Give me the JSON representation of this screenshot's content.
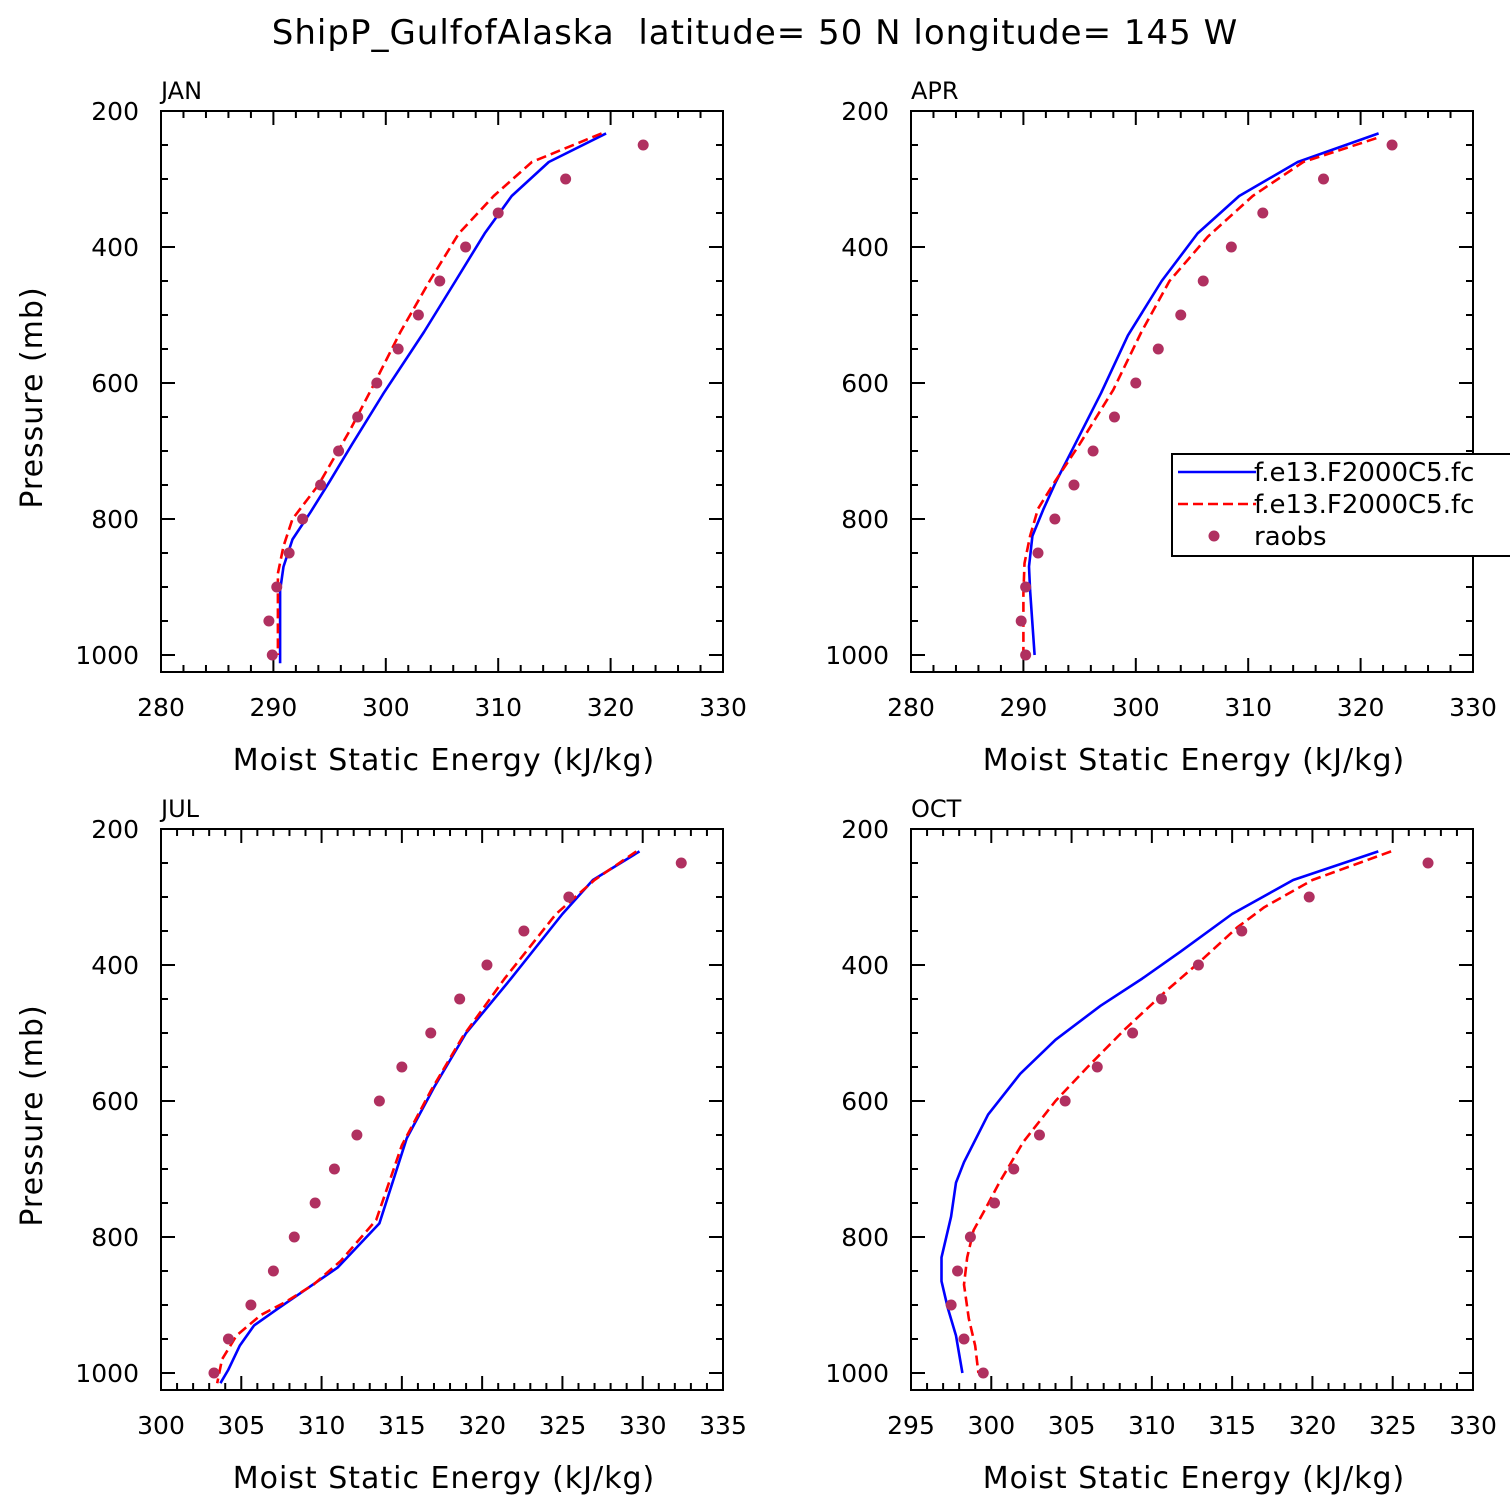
{
  "figure": {
    "title": "ShipP_GulfofAlaska  latitude= 50 N longitude= 145 W",
    "colors": {
      "model_a": "#0000ff",
      "model_b": "#ff0000",
      "raobs": "#b03060"
    }
  },
  "legend": {
    "placement": "right-middle of APR panel",
    "entries": [
      {
        "label": "f.e13.F2000C5.fc",
        "style": "solid",
        "color": "#0000ff"
      },
      {
        "label": "f.e13.F2000C5.fc",
        "style": "dashed",
        "color": "#ff0000"
      },
      {
        "label": "raobs",
        "style": "marker",
        "color": "#b03060"
      }
    ]
  },
  "chart_data": [
    {
      "type": "line",
      "panel": "JAN",
      "title": "JAN",
      "xlabel": "Moist Static Energy (kJ/kg)",
      "ylabel": "Pressure (mb)",
      "xlim": [
        280,
        330
      ],
      "ylim": [
        200,
        1025
      ],
      "y_inverted": true,
      "xticks": [
        280,
        290,
        300,
        310,
        320,
        330
      ],
      "yticks": [
        200,
        400,
        600,
        800,
        1000
      ],
      "series": [
        {
          "key": "model_a",
          "style": "solid",
          "color": "#0000ff",
          "points": [
            [
              319.6,
              233
            ],
            [
              314.5,
              275
            ],
            [
              311.2,
              325
            ],
            [
              308.8,
              380
            ],
            [
              306.2,
              450
            ],
            [
              303.4,
              525
            ],
            [
              299.8,
              615
            ],
            [
              297.0,
              690
            ],
            [
              295.0,
              745
            ],
            [
              293.3,
              790
            ],
            [
              291.7,
              830
            ],
            [
              290.9,
              870
            ],
            [
              290.6,
              905
            ],
            [
              290.6,
              1012
            ]
          ]
        },
        {
          "key": "model_b",
          "style": "dashed",
          "color": "#ff0000",
          "points": [
            [
              319.2,
              233
            ],
            [
              313.0,
              275
            ],
            [
              309.6,
              325
            ],
            [
              306.5,
              380
            ],
            [
              303.9,
              450
            ],
            [
              301.3,
              525
            ],
            [
              299.0,
              600
            ],
            [
              296.8,
              670
            ],
            [
              294.0,
              750
            ],
            [
              291.7,
              800
            ],
            [
              290.9,
              840
            ],
            [
              290.4,
              880
            ],
            [
              290.4,
              1000
            ]
          ]
        },
        {
          "key": "raobs",
          "style": "marker",
          "color": "#b03060",
          "points": [
            [
              322.9,
              250
            ],
            [
              316.0,
              300
            ],
            [
              310.0,
              350
            ],
            [
              307.1,
              400
            ],
            [
              304.8,
              450
            ],
            [
              302.9,
              500
            ],
            [
              301.1,
              550
            ],
            [
              299.2,
              600
            ],
            [
              297.5,
              650
            ],
            [
              295.8,
              700
            ],
            [
              294.2,
              750
            ],
            [
              292.6,
              800
            ],
            [
              291.4,
              850
            ],
            [
              290.3,
              900
            ],
            [
              289.6,
              950
            ],
            [
              289.9,
              1000
            ]
          ]
        }
      ]
    },
    {
      "type": "line",
      "panel": "APR",
      "title": "APR",
      "xlabel": "Moist Static Energy (kJ/kg)",
      "ylabel": "",
      "xlim": [
        280,
        330
      ],
      "ylim": [
        200,
        1025
      ],
      "y_inverted": true,
      "xticks": [
        280,
        290,
        300,
        310,
        320,
        330
      ],
      "yticks": [
        200,
        400,
        600,
        800,
        1000
      ],
      "series": [
        {
          "key": "model_a",
          "style": "solid",
          "color": "#0000ff",
          "points": [
            [
              321.6,
              233
            ],
            [
              314.4,
              275
            ],
            [
              309.2,
              325
            ],
            [
              305.5,
              380
            ],
            [
              302.3,
              450
            ],
            [
              299.3,
              530
            ],
            [
              296.9,
              615
            ],
            [
              294.6,
              690
            ],
            [
              292.9,
              745
            ],
            [
              291.8,
              785
            ],
            [
              290.8,
              825
            ],
            [
              290.5,
              870
            ],
            [
              290.6,
              905
            ],
            [
              291.0,
              1000
            ]
          ]
        },
        {
          "key": "model_b",
          "style": "dashed",
          "color": "#ff0000",
          "points": [
            [
              321.4,
              240
            ],
            [
              314.9,
              275
            ],
            [
              310.4,
              325
            ],
            [
              306.4,
              385
            ],
            [
              303.0,
              450
            ],
            [
              300.5,
              525
            ],
            [
              298.0,
              610
            ],
            [
              295.0,
              690
            ],
            [
              292.8,
              745
            ],
            [
              291.3,
              785
            ],
            [
              290.6,
              825
            ],
            [
              290.1,
              865
            ],
            [
              290.0,
              910
            ],
            [
              290.0,
              1000
            ]
          ]
        },
        {
          "key": "raobs",
          "style": "marker",
          "color": "#b03060",
          "points": [
            [
              322.8,
              250
            ],
            [
              316.7,
              300
            ],
            [
              311.3,
              350
            ],
            [
              308.5,
              400
            ],
            [
              306.0,
              450
            ],
            [
              304.0,
              500
            ],
            [
              302.0,
              550
            ],
            [
              300.0,
              600
            ],
            [
              298.1,
              650
            ],
            [
              296.2,
              700
            ],
            [
              294.5,
              750
            ],
            [
              292.8,
              800
            ],
            [
              291.3,
              850
            ],
            [
              290.2,
              900
            ],
            [
              289.8,
              950
            ],
            [
              290.2,
              1000
            ]
          ]
        }
      ]
    },
    {
      "type": "line",
      "panel": "JUL",
      "title": "JUL",
      "xlabel": "Moist Static Energy (kJ/kg)",
      "ylabel": "Pressure (mb)",
      "xlim": [
        300,
        335
      ],
      "ylim": [
        200,
        1025
      ],
      "y_inverted": true,
      "xticks": [
        300,
        305,
        310,
        315,
        320,
        325,
        330,
        335
      ],
      "yticks": [
        200,
        400,
        600,
        800,
        1000
      ],
      "series": [
        {
          "key": "model_a",
          "style": "solid",
          "color": "#0000ff",
          "points": [
            [
              329.8,
              233
            ],
            [
              326.9,
              275
            ],
            [
              325.0,
              325
            ],
            [
              321.8,
              420
            ],
            [
              319.0,
              500
            ],
            [
              317.0,
              580
            ],
            [
              315.3,
              655
            ],
            [
              313.6,
              780
            ],
            [
              311.0,
              845
            ],
            [
              307.3,
              905
            ],
            [
              305.8,
              930
            ],
            [
              304.9,
              960
            ],
            [
              304.2,
              995
            ],
            [
              303.7,
              1015
            ]
          ]
        },
        {
          "key": "model_b",
          "style": "dashed",
          "color": "#ff0000",
          "points": [
            [
              329.6,
              233
            ],
            [
              327.0,
              275
            ],
            [
              324.6,
              325
            ],
            [
              321.4,
              420
            ],
            [
              318.8,
              505
            ],
            [
              316.8,
              585
            ],
            [
              315.0,
              665
            ],
            [
              313.4,
              775
            ],
            [
              311.2,
              835
            ],
            [
              309.5,
              870
            ],
            [
              307.8,
              895
            ],
            [
              306.2,
              915
            ],
            [
              304.7,
              945
            ],
            [
              303.8,
              980
            ],
            [
              303.5,
              1015
            ]
          ]
        },
        {
          "key": "raobs",
          "style": "marker",
          "color": "#b03060",
          "points": [
            [
              332.4,
              250
            ],
            [
              325.4,
              300
            ],
            [
              322.6,
              350
            ],
            [
              320.3,
              400
            ],
            [
              318.6,
              450
            ],
            [
              316.8,
              500
            ],
            [
              315.0,
              550
            ],
            [
              313.6,
              600
            ],
            [
              312.2,
              650
            ],
            [
              310.8,
              700
            ],
            [
              309.6,
              750
            ],
            [
              308.3,
              800
            ],
            [
              307.0,
              850
            ],
            [
              305.6,
              900
            ],
            [
              304.2,
              950
            ],
            [
              303.3,
              1000
            ]
          ]
        }
      ]
    },
    {
      "type": "line",
      "panel": "OCT",
      "title": "OCT",
      "xlabel": "Moist Static Energy (kJ/kg)",
      "ylabel": "",
      "xlim": [
        295,
        330
      ],
      "ylim": [
        200,
        1025
      ],
      "y_inverted": true,
      "xticks": [
        295,
        300,
        305,
        310,
        315,
        320,
        325,
        330
      ],
      "yticks": [
        200,
        400,
        600,
        800,
        1000
      ],
      "series": [
        {
          "key": "model_a",
          "style": "solid",
          "color": "#0000ff",
          "points": [
            [
              324.1,
              233
            ],
            [
              318.8,
              275
            ],
            [
              315.0,
              325
            ],
            [
              311.8,
              380
            ],
            [
              309.4,
              420
            ],
            [
              306.8,
              460
            ],
            [
              304.0,
              510
            ],
            [
              301.8,
              560
            ],
            [
              299.8,
              620
            ],
            [
              298.3,
              690
            ],
            [
              297.8,
              720
            ],
            [
              297.5,
              770
            ],
            [
              296.9,
              830
            ],
            [
              296.9,
              865
            ],
            [
              297.3,
              905
            ],
            [
              297.8,
              945
            ],
            [
              298.2,
              1000
            ]
          ]
        },
        {
          "key": "model_b",
          "style": "dashed",
          "color": "#ff0000",
          "points": [
            [
              324.9,
              233
            ],
            [
              320.0,
              275
            ],
            [
              317.0,
              315
            ],
            [
              315.3,
              345
            ],
            [
              313.0,
              395
            ],
            [
              310.8,
              440
            ],
            [
              308.3,
              495
            ],
            [
              306.0,
              550
            ],
            [
              304.0,
              600
            ],
            [
              302.0,
              660
            ],
            [
              300.5,
              720
            ],
            [
              299.6,
              760
            ],
            [
              298.9,
              790
            ],
            [
              298.5,
              830
            ],
            [
              298.3,
              870
            ],
            [
              298.6,
              920
            ],
            [
              299.0,
              960
            ],
            [
              299.2,
              1000
            ]
          ]
        },
        {
          "key": "raobs",
          "style": "marker",
          "color": "#b03060",
          "points": [
            [
              327.2,
              250
            ],
            [
              319.8,
              300
            ],
            [
              315.6,
              350
            ],
            [
              312.9,
              400
            ],
            [
              310.6,
              450
            ],
            [
              308.8,
              500
            ],
            [
              306.6,
              550
            ],
            [
              304.6,
              600
            ],
            [
              303.0,
              650
            ],
            [
              301.4,
              700
            ],
            [
              300.2,
              750
            ],
            [
              298.7,
              800
            ],
            [
              297.9,
              850
            ],
            [
              297.5,
              900
            ],
            [
              298.3,
              950
            ],
            [
              299.5,
              1000
            ]
          ]
        }
      ]
    }
  ]
}
